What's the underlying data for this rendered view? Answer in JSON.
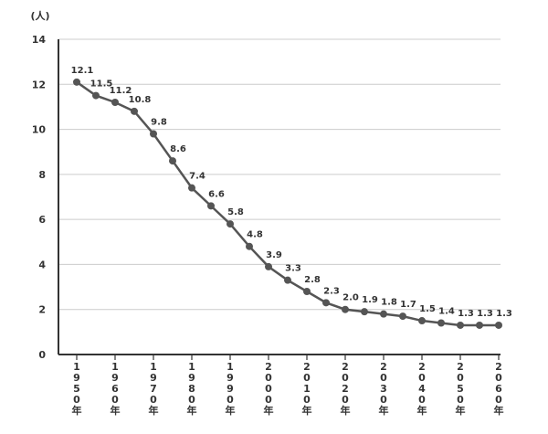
{
  "chart_data": {
    "type": "line",
    "ylabel": "(人)",
    "ylim": [
      0,
      14
    ],
    "yticks": [
      0,
      2,
      4,
      6,
      8,
      10,
      12,
      14
    ],
    "grid": true,
    "x_labels": [
      "1950年",
      "1960年",
      "1970年",
      "1980年",
      "1990年",
      "2000年",
      "2010年",
      "2020年",
      "2030年",
      "2040年",
      "2050年",
      "2060年"
    ],
    "x": [
      1950,
      1955,
      1960,
      1965,
      1970,
      1975,
      1980,
      1985,
      1990,
      1995,
      2000,
      2005,
      2010,
      2015,
      2020,
      2025,
      2030,
      2035,
      2040,
      2045,
      2050,
      2055,
      2060
    ],
    "values": [
      12.1,
      11.5,
      11.2,
      10.8,
      9.8,
      8.6,
      7.4,
      6.6,
      5.8,
      4.8,
      3.9,
      3.3,
      2.8,
      2.3,
      2.0,
      1.9,
      1.8,
      1.7,
      1.5,
      1.4,
      1.3,
      1.3,
      1.3
    ],
    "value_labels": [
      "12.1",
      "11.5",
      "11.2",
      "10.8",
      "9.8",
      "8.6",
      "7.4",
      "6.6",
      "5.8",
      "4.8",
      "3.9",
      "3.3",
      "2.8",
      "2.3",
      "2.0",
      "1.9",
      "1.8",
      "1.7",
      "1.5",
      "1.4",
      "1.3",
      "1.3",
      "1.3"
    ],
    "line_color": "#555555",
    "grid_color": "#cccccc",
    "axis_color": "#333333"
  }
}
